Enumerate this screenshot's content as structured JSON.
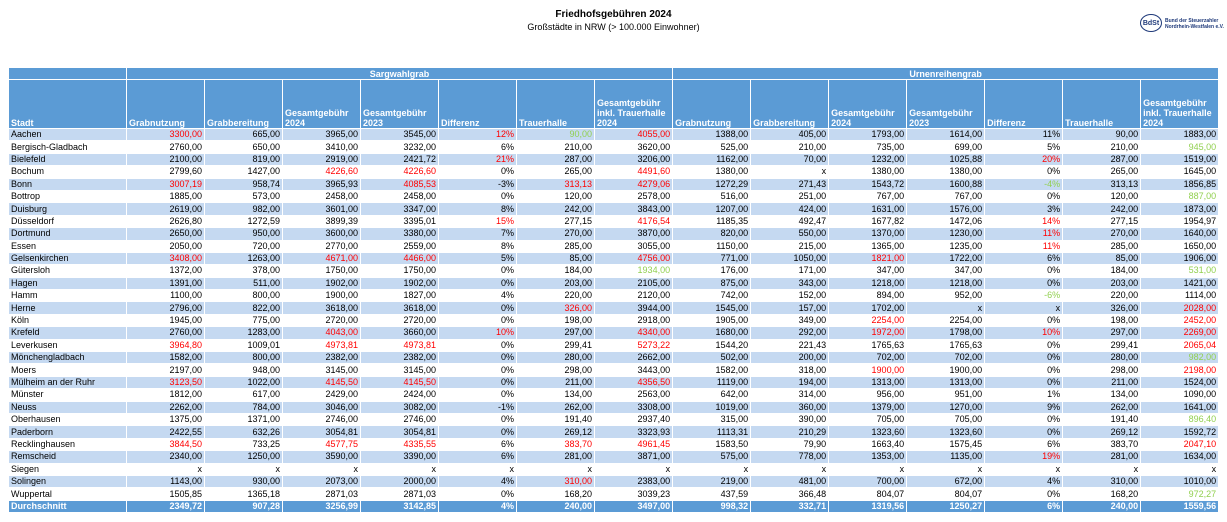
{
  "header": {
    "title": "Friedhofsgebühren 2024",
    "subtitle": "Großstädte in NRW (> 100.000 Einwohner)",
    "logo": {
      "mark": "BdSt",
      "line1": "Bund der Steuerzahler",
      "line2": "Nordrhein-Westfalen e.V."
    }
  },
  "table": {
    "first_column": "Stadt",
    "groups": [
      {
        "title": "Sargwahlgrab",
        "columns": [
          "Grabnutzung",
          "Grabbereitung",
          "Gesamtgebühr 2024",
          "Gesamtgebühr 2023",
          "Differenz",
          "Trauerhalle",
          "Gesamtgebühr inkl. Trauerhalle 2024"
        ]
      },
      {
        "title": "Urnenreihengrab",
        "columns": [
          "Grabnutzung",
          "Grabbereitung",
          "Gesamtgebühr 2024",
          "Gesamtgebühr 2023",
          "Differenz",
          "Trauerhalle",
          "Gesamtgebühr inkl. Trauerhalle 2024"
        ]
      }
    ],
    "colors": {
      "red": "#ff0000",
      "green": "#92d050"
    },
    "rows": [
      {
        "stadt": "Aachen",
        "values": [
          "3300,00",
          "665,00",
          "3965,00",
          "3545,00",
          "12%",
          "90,00",
          "4055,00",
          "1388,00",
          "405,00",
          "1793,00",
          "1614,00",
          "11%",
          "90,00",
          "1883,00"
        ],
        "red": [
          0,
          4,
          6
        ],
        "green": [
          5
        ]
      },
      {
        "stadt": "Bergisch-Gladbach",
        "values": [
          "2760,00",
          "650,00",
          "3410,00",
          "3232,00",
          "6%",
          "210,00",
          "3620,00",
          "525,00",
          "210,00",
          "735,00",
          "699,00",
          "5%",
          "210,00",
          "945,00"
        ],
        "green": [
          13
        ]
      },
      {
        "stadt": "Bielefeld",
        "values": [
          "2100,00",
          "819,00",
          "2919,00",
          "2421,72",
          "21%",
          "287,00",
          "3206,00",
          "1162,00",
          "70,00",
          "1232,00",
          "1025,88",
          "20%",
          "287,00",
          "1519,00"
        ],
        "red": [
          4,
          11
        ]
      },
      {
        "stadt": "Bochum",
        "values": [
          "2799,60",
          "1427,00",
          "4226,60",
          "4226,60",
          "0%",
          "265,00",
          "4491,60",
          "1380,00",
          "x",
          "1380,00",
          "1380,00",
          "0%",
          "265,00",
          "1645,00"
        ],
        "red": [
          2,
          3,
          6
        ]
      },
      {
        "stadt": "Bonn",
        "values": [
          "3007,19",
          "958,74",
          "3965,93",
          "4085,53",
          "-3%",
          "313,13",
          "4279,06",
          "1272,29",
          "271,43",
          "1543,72",
          "1600,88",
          "-4%",
          "313,13",
          "1856,85"
        ],
        "red": [
          0,
          3,
          5,
          6
        ],
        "green": [
          11
        ]
      },
      {
        "stadt": "Bottrop",
        "values": [
          "1885,00",
          "573,00",
          "2458,00",
          "2458,00",
          "0%",
          "120,00",
          "2578,00",
          "516,00",
          "251,00",
          "767,00",
          "767,00",
          "0%",
          "120,00",
          "887,00"
        ],
        "green": [
          13
        ]
      },
      {
        "stadt": "Duisburg",
        "values": [
          "2619,00",
          "982,00",
          "3601,00",
          "3347,00",
          "8%",
          "242,00",
          "3843,00",
          "1207,00",
          "424,00",
          "1631,00",
          "1576,00",
          "3%",
          "242,00",
          "1873,00"
        ]
      },
      {
        "stadt": "Düsseldorf",
        "values": [
          "2626,80",
          "1272,59",
          "3899,39",
          "3395,01",
          "15%",
          "277,15",
          "4176,54",
          "1185,35",
          "492,47",
          "1677,82",
          "1472,06",
          "14%",
          "277,15",
          "1954,97"
        ],
        "red": [
          4,
          6,
          11
        ]
      },
      {
        "stadt": "Dortmund",
        "values": [
          "2650,00",
          "950,00",
          "3600,00",
          "3380,00",
          "7%",
          "270,00",
          "3870,00",
          "820,00",
          "550,00",
          "1370,00",
          "1230,00",
          "11%",
          "270,00",
          "1640,00"
        ],
        "red": [
          11
        ]
      },
      {
        "stadt": "Essen",
        "values": [
          "2050,00",
          "720,00",
          "2770,00",
          "2559,00",
          "8%",
          "285,00",
          "3055,00",
          "1150,00",
          "215,00",
          "1365,00",
          "1235,00",
          "11%",
          "285,00",
          "1650,00"
        ],
        "red": [
          11
        ]
      },
      {
        "stadt": "Gelsenkirchen",
        "values": [
          "3408,00",
          "1263,00",
          "4671,00",
          "4466,00",
          "5%",
          "85,00",
          "4756,00",
          "771,00",
          "1050,00",
          "1821,00",
          "1722,00",
          "6%",
          "85,00",
          "1906,00"
        ],
        "red": [
          0,
          2,
          3,
          6,
          9
        ]
      },
      {
        "stadt": "Gütersloh",
        "values": [
          "1372,00",
          "378,00",
          "1750,00",
          "1750,00",
          "0%",
          "184,00",
          "1934,00",
          "176,00",
          "171,00",
          "347,00",
          "347,00",
          "0%",
          "184,00",
          "531,00"
        ],
        "green": [
          6,
          13
        ]
      },
      {
        "stadt": "Hagen",
        "values": [
          "1391,00",
          "511,00",
          "1902,00",
          "1902,00",
          "0%",
          "203,00",
          "2105,00",
          "875,00",
          "343,00",
          "1218,00",
          "1218,00",
          "0%",
          "203,00",
          "1421,00"
        ]
      },
      {
        "stadt": "Hamm",
        "values": [
          "1100,00",
          "800,00",
          "1900,00",
          "1827,00",
          "4%",
          "220,00",
          "2120,00",
          "742,00",
          "152,00",
          "894,00",
          "952,00",
          "-6%",
          "220,00",
          "1114,00"
        ],
        "green": [
          11
        ]
      },
      {
        "stadt": "Herne",
        "values": [
          "2796,00",
          "822,00",
          "3618,00",
          "3618,00",
          "0%",
          "326,00",
          "3944,00",
          "1545,00",
          "157,00",
          "1702,00",
          "x",
          "x",
          "326,00",
          "2028,00"
        ],
        "red": [
          5,
          13
        ]
      },
      {
        "stadt": "Köln",
        "values": [
          "1945,00",
          "775,00",
          "2720,00",
          "2720,00",
          "0%",
          "198,00",
          "2918,00",
          "1905,00",
          "349,00",
          "2254,00",
          "2254,00",
          "0%",
          "198,00",
          "2452,00"
        ],
        "red": [
          9,
          13
        ]
      },
      {
        "stadt": "Krefeld",
        "values": [
          "2760,00",
          "1283,00",
          "4043,00",
          "3660,00",
          "10%",
          "297,00",
          "4340,00",
          "1680,00",
          "292,00",
          "1972,00",
          "1798,00",
          "10%",
          "297,00",
          "2269,00"
        ],
        "red": [
          2,
          4,
          6,
          9,
          11,
          13
        ]
      },
      {
        "stadt": "Leverkusen",
        "values": [
          "3964,80",
          "1009,01",
          "4973,81",
          "4973,81",
          "0%",
          "299,41",
          "5273,22",
          "1544,20",
          "221,43",
          "1765,63",
          "1765,63",
          "0%",
          "299,41",
          "2065,04"
        ],
        "red": [
          0,
          2,
          3,
          6,
          13
        ]
      },
      {
        "stadt": "Mönchengladbach",
        "values": [
          "1582,00",
          "800,00",
          "2382,00",
          "2382,00",
          "0%",
          "280,00",
          "2662,00",
          "502,00",
          "200,00",
          "702,00",
          "702,00",
          "0%",
          "280,00",
          "982,00"
        ],
        "green": [
          13
        ]
      },
      {
        "stadt": "Moers",
        "values": [
          "2197,00",
          "948,00",
          "3145,00",
          "3145,00",
          "0%",
          "298,00",
          "3443,00",
          "1582,00",
          "318,00",
          "1900,00",
          "1900,00",
          "0%",
          "298,00",
          "2198,00"
        ],
        "red": [
          9,
          13
        ]
      },
      {
        "stadt": "Mülheim an der Ruhr",
        "values": [
          "3123,50",
          "1022,00",
          "4145,50",
          "4145,50",
          "0%",
          "211,00",
          "4356,50",
          "1119,00",
          "194,00",
          "1313,00",
          "1313,00",
          "0%",
          "211,00",
          "1524,00"
        ],
        "red": [
          0,
          2,
          3,
          6
        ]
      },
      {
        "stadt": "Münster",
        "values": [
          "1812,00",
          "617,00",
          "2429,00",
          "2424,00",
          "0%",
          "134,00",
          "2563,00",
          "642,00",
          "314,00",
          "956,00",
          "951,00",
          "1%",
          "134,00",
          "1090,00"
        ]
      },
      {
        "stadt": "Neuss",
        "values": [
          "2262,00",
          "784,00",
          "3046,00",
          "3082,00",
          "-1%",
          "262,00",
          "3308,00",
          "1019,00",
          "360,00",
          "1379,00",
          "1270,00",
          "9%",
          "262,00",
          "1641,00"
        ]
      },
      {
        "stadt": "Oberhausen",
        "values": [
          "1375,00",
          "1371,00",
          "2746,00",
          "2746,00",
          "0%",
          "191,40",
          "2937,40",
          "315,00",
          "390,00",
          "705,00",
          "705,00",
          "0%",
          "191,40",
          "896,40"
        ],
        "green": [
          13
        ]
      },
      {
        "stadt": "Paderborn",
        "values": [
          "2422,55",
          "632,26",
          "3054,81",
          "3054,81",
          "0%",
          "269,12",
          "3323,93",
          "1113,31",
          "210,29",
          "1323,60",
          "1323,60",
          "0%",
          "269,12",
          "1592,72"
        ]
      },
      {
        "stadt": "Recklinghausen",
        "values": [
          "3844,50",
          "733,25",
          "4577,75",
          "4335,55",
          "6%",
          "383,70",
          "4961,45",
          "1583,50",
          "79,90",
          "1663,40",
          "1575,45",
          "6%",
          "383,70",
          "2047,10"
        ],
        "red": [
          0,
          2,
          3,
          5,
          6,
          13
        ]
      },
      {
        "stadt": "Remscheid",
        "values": [
          "2340,00",
          "1250,00",
          "3590,00",
          "3390,00",
          "6%",
          "281,00",
          "3871,00",
          "575,00",
          "778,00",
          "1353,00",
          "1135,00",
          "19%",
          "281,00",
          "1634,00"
        ],
        "red": [
          11
        ]
      },
      {
        "stadt": "Siegen",
        "values": [
          "x",
          "x",
          "x",
          "x",
          "x",
          "x",
          "x",
          "x",
          "x",
          "x",
          "x",
          "x",
          "x",
          "x"
        ]
      },
      {
        "stadt": "Solingen",
        "values": [
          "1143,00",
          "930,00",
          "2073,00",
          "2000,00",
          "4%",
          "310,00",
          "2383,00",
          "219,00",
          "481,00",
          "700,00",
          "672,00",
          "4%",
          "310,00",
          "1010,00"
        ],
        "red": [
          5
        ]
      },
      {
        "stadt": "Wuppertal",
        "values": [
          "1505,85",
          "1365,18",
          "2871,03",
          "2871,03",
          "0%",
          "168,20",
          "3039,23",
          "437,59",
          "366,48",
          "804,07",
          "804,07",
          "0%",
          "168,20",
          "972,27"
        ],
        "green": [
          13
        ]
      }
    ],
    "average": {
      "stadt": "Durchschnitt",
      "values": [
        "2349,72",
        "907,28",
        "3256,99",
        "3142,85",
        "4%",
        "240,00",
        "3497,00",
        "998,32",
        "332,71",
        "1319,56",
        "1250,27",
        "6%",
        "240,00",
        "1559,56"
      ]
    }
  }
}
